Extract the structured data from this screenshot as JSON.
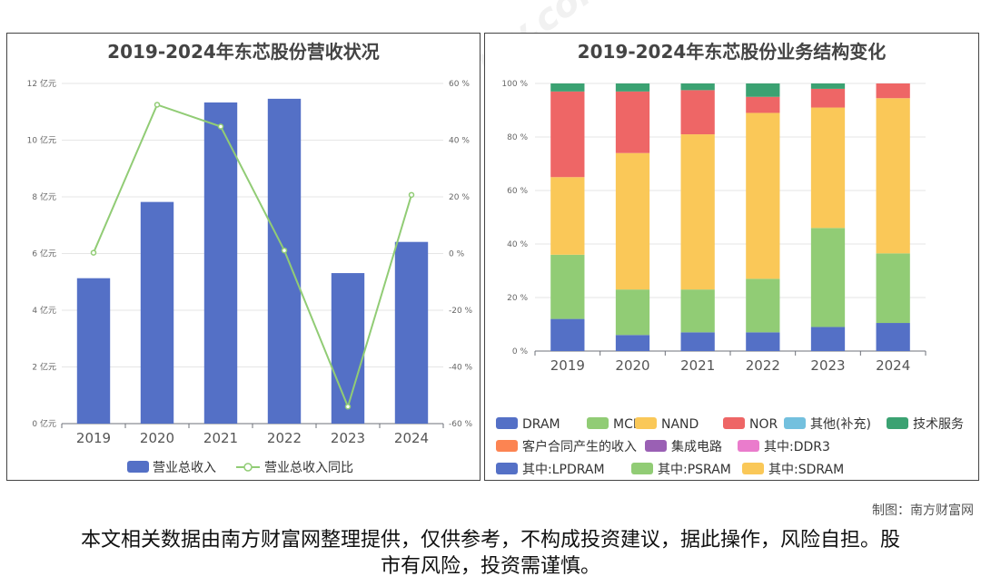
{
  "watermark": {
    "brand": "南方财富网",
    "url": "southmoney.com"
  },
  "credit": "制图：南方财富网",
  "disclaimer": "本文相关数据由南方财富网整理提供，仅供参考，不构成投资建议，据此操作，风险自担。股市有风险，投资需谨慎。",
  "chart_data": [
    {
      "type": "bar",
      "title": "2019-2024年东芯股份营收状况",
      "categories": [
        "2019",
        "2020",
        "2021",
        "2022",
        "2023",
        "2024"
      ],
      "series": [
        {
          "name": "营业总收入",
          "type": "bar",
          "axis": "left",
          "color": "#5470c6",
          "values": [
            5.13,
            7.82,
            11.33,
            11.46,
            5.31,
            6.41
          ]
        },
        {
          "name": "营业总收入同比",
          "type": "line",
          "axis": "right",
          "color": "#91cc75",
          "values": [
            0.3,
            52.5,
            44.8,
            1.1,
            -54.0,
            20.7
          ]
        }
      ],
      "y_left": {
        "ticks": [
          "0 亿元",
          "2 亿元",
          "4 亿元",
          "6 亿元",
          "8 亿元",
          "10 亿元",
          "12 亿元"
        ],
        "ylim": [
          0,
          12
        ]
      },
      "y_right": {
        "ticks": [
          "-60 %",
          "-40 %",
          "-20 %",
          "0 %",
          "20 %",
          "40 %",
          "60 %"
        ],
        "ylim": [
          -60,
          60
        ]
      },
      "grid": true,
      "legend_position": "bottom"
    },
    {
      "type": "bar",
      "stacked": true,
      "title": "2019-2024年东芯股份业务结构变化",
      "categories": [
        "2019",
        "2020",
        "2021",
        "2022",
        "2023",
        "2024"
      ],
      "y": {
        "ticks": [
          "0 %",
          "20 %",
          "40 %",
          "60 %",
          "80 %",
          "100 %"
        ],
        "ylim": [
          0,
          100
        ]
      },
      "series": [
        {
          "name": "DRAM",
          "color": "#5470c6",
          "values": [
            12,
            6,
            7,
            7,
            9,
            10.5
          ]
        },
        {
          "name": "MCP",
          "color": "#91cc75",
          "values": [
            24,
            17,
            16,
            20,
            37,
            26
          ]
        },
        {
          "name": "NAND",
          "color": "#fac858",
          "values": [
            29,
            51,
            58,
            62,
            45,
            58
          ]
        },
        {
          "name": "NOR",
          "color": "#ee6666",
          "values": [
            32,
            23,
            16.5,
            6,
            7,
            5.5
          ]
        },
        {
          "name": "其他(补充)",
          "color": "#73c0de",
          "values": [
            0,
            0,
            0,
            0,
            0,
            0
          ]
        },
        {
          "name": "技术服务",
          "color": "#3ba272",
          "values": [
            3,
            3,
            2.5,
            5,
            2,
            0
          ]
        },
        {
          "name": "客户合同产生的收入",
          "color": "#fc8452",
          "values": [
            0,
            0,
            0,
            0,
            0,
            0
          ]
        },
        {
          "name": "集成电路",
          "color": "#9a60b4",
          "values": [
            0,
            0,
            0,
            0,
            0,
            0
          ]
        },
        {
          "name": "其中:DDR3",
          "color": "#ea7ccc",
          "values": [
            0,
            0,
            0,
            0,
            0,
            0
          ]
        },
        {
          "name": "其中:LPDRAM",
          "color": "#5470c6",
          "values": [
            0,
            0,
            0,
            0,
            0,
            0
          ]
        },
        {
          "name": "其中:PSRAM",
          "color": "#91cc75",
          "values": [
            0,
            0,
            0,
            0,
            0,
            0
          ]
        },
        {
          "name": "其中:SDRAM",
          "color": "#fac858",
          "values": [
            0,
            0,
            0,
            0,
            0,
            0
          ]
        }
      ],
      "grid": true,
      "legend_position": "bottom"
    }
  ]
}
